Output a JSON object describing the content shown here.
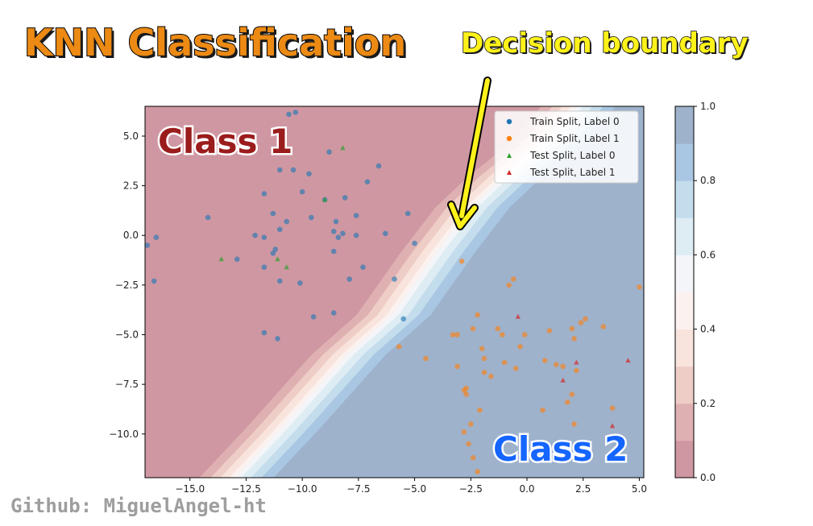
{
  "header": {
    "title": "KNN Classification",
    "callout": "Decision boundary",
    "credit": "Github: MiguelAngel-ht"
  },
  "annotations": {
    "class1": "Class 1",
    "class2": "Class 2"
  },
  "colors": {
    "title": "#ec8a14",
    "callout": "#fff21a",
    "class1_text": "#9b1c1c",
    "class2_text": "#1565ff",
    "region_class1": "#d29aa5",
    "region_class2": "#9fb4cd",
    "train0": "#1f77b4",
    "train1": "#ff7f0e",
    "test0": "#2ca02c",
    "test1": "#d62728"
  },
  "chart_data": {
    "type": "scatter",
    "xlim": [
      -17,
      5.2
    ],
    "ylim": [
      -12.2,
      6.5
    ],
    "xticks": [
      -15.0,
      -12.5,
      -10.0,
      -7.5,
      -5.0,
      -2.5,
      0.0,
      2.5,
      5.0
    ],
    "xtick_labels": [
      "−15.0",
      "−12.5",
      "−10.0",
      "−7.5",
      "−5.0",
      "−2.5",
      "0.0",
      "2.5",
      "5.0"
    ],
    "yticks": [
      5.0,
      2.5,
      0.0,
      -2.5,
      -5.0,
      -7.5,
      -10.0
    ],
    "ytick_labels": [
      "5.0",
      "2.5",
      "0.0",
      "−2.5",
      "−5.0",
      "−7.5",
      "−10.0"
    ],
    "legend_position": "top-right",
    "grid": false,
    "decision_boundary": {
      "levels": [
        0.0,
        0.1,
        0.2,
        0.3,
        0.4,
        0.5,
        0.6,
        0.7,
        0.8,
        0.9,
        1.0
      ],
      "level_colors": [
        "#cf97a2",
        "#dfb0b2",
        "#eecdc6",
        "#f8e4dc",
        "#fbf1ee",
        "#f3f5f8",
        "#deecf3",
        "#c4dded",
        "#a9c6e2",
        "#9eb2cc"
      ],
      "center_line": [
        [
          -13.0,
          -12.2
        ],
        [
          -11.0,
          -9.8
        ],
        [
          -8.0,
          -6.0
        ],
        [
          -6.0,
          -4.0
        ],
        [
          -5.0,
          -2.4
        ],
        [
          -4.0,
          -0.8
        ],
        [
          -2.5,
          1.4
        ],
        [
          -1.0,
          3.0
        ],
        [
          1.0,
          4.8
        ],
        [
          2.2,
          6.5
        ]
      ]
    },
    "colorbar": {
      "range": [
        0.0,
        1.0
      ],
      "ticks": [
        0.0,
        0.2,
        0.4,
        0.6,
        0.8,
        1.0
      ],
      "tick_labels": [
        "0.0",
        "0.2",
        "0.4",
        "0.6",
        "0.8",
        "1.0"
      ]
    },
    "series": [
      {
        "name": "Train Split, Label 0",
        "marker": "circle",
        "color": "#1f77b4",
        "points": [
          [
            -16.9,
            -0.5
          ],
          [
            -16.5,
            -0.1
          ],
          [
            -16.6,
            -2.3
          ],
          [
            -14.2,
            0.9
          ],
          [
            -12.9,
            -1.2
          ],
          [
            -12.1,
            0.0
          ],
          [
            -11.7,
            2.1
          ],
          [
            -11.7,
            -0.1
          ],
          [
            -11.7,
            -1.6
          ],
          [
            -11.3,
            1.1
          ],
          [
            -11.3,
            -0.9
          ],
          [
            -11.2,
            -0.7
          ],
          [
            -11.0,
            3.3
          ],
          [
            -11.0,
            0.3
          ],
          [
            -10.7,
            0.7
          ],
          [
            -10.4,
            3.3
          ],
          [
            -10.1,
            -2.4
          ],
          [
            -10.0,
            2.2
          ],
          [
            -9.7,
            3.1
          ],
          [
            -9.6,
            0.9
          ],
          [
            -9.5,
            -4.1
          ],
          [
            -9.0,
            1.8
          ],
          [
            -8.8,
            4.2
          ],
          [
            -8.6,
            0.2
          ],
          [
            -8.5,
            0.7
          ],
          [
            -8.4,
            -0.1
          ],
          [
            -8.2,
            0.1
          ],
          [
            -8.1,
            1.9
          ],
          [
            -7.9,
            -2.2
          ],
          [
            -7.6,
            1.0
          ],
          [
            -7.6,
            0.0
          ],
          [
            -7.3,
            -1.6
          ],
          [
            -7.1,
            2.7
          ],
          [
            -6.6,
            3.5
          ],
          [
            -6.3,
            0.1
          ],
          [
            -5.9,
            -2.2
          ],
          [
            -5.3,
            1.1
          ],
          [
            -5.0,
            -0.4
          ],
          [
            -10.6,
            6.1
          ],
          [
            -10.3,
            6.2
          ],
          [
            -8.6,
            -0.8
          ],
          [
            -8.6,
            -3.9
          ],
          [
            -11.1,
            -5.2
          ],
          [
            -11.7,
            -4.9
          ],
          [
            -11.0,
            -2.3
          ],
          [
            -5.5,
            -4.2
          ]
        ]
      },
      {
        "name": "Train Split, Label 1",
        "marker": "circle",
        "color": "#ff7f0e",
        "points": [
          [
            -5.7,
            -5.6
          ],
          [
            -4.5,
            -6.2
          ],
          [
            -3.3,
            -5.0
          ],
          [
            -3.1,
            -5.0
          ],
          [
            -3.1,
            -6.6
          ],
          [
            -2.9,
            -1.3
          ],
          [
            -2.8,
            -7.8
          ],
          [
            -2.7,
            -8.0
          ],
          [
            -2.7,
            -7.7
          ],
          [
            -2.5,
            -9.5
          ],
          [
            -2.4,
            -4.7
          ],
          [
            -2.2,
            -4.0
          ],
          [
            -2.0,
            -5.7
          ],
          [
            -1.9,
            -6.2
          ],
          [
            -1.6,
            -7.1
          ],
          [
            -1.3,
            -4.7
          ],
          [
            -1.1,
            -5.0
          ],
          [
            -1.0,
            -6.4
          ],
          [
            -0.8,
            -2.5
          ],
          [
            -0.6,
            -2.2
          ],
          [
            -0.5,
            -6.7
          ],
          [
            -0.3,
            -5.6
          ],
          [
            -0.1,
            -5.0
          ],
          [
            0.8,
            -6.3
          ],
          [
            1.0,
            -4.8
          ],
          [
            1.3,
            -6.5
          ],
          [
            1.6,
            -6.6
          ],
          [
            1.8,
            -8.4
          ],
          [
            2.0,
            -4.7
          ],
          [
            2.1,
            -5.2
          ],
          [
            2.2,
            -6.8
          ],
          [
            2.4,
            -4.4
          ],
          [
            2.6,
            -4.2
          ],
          [
            3.4,
            -4.6
          ],
          [
            3.8,
            -8.7
          ],
          [
            5.0,
            -2.6
          ],
          [
            -2.8,
            -9.9
          ],
          [
            -2.6,
            -10.5
          ],
          [
            -2.4,
            -11.2
          ],
          [
            -2.2,
            -11.9
          ],
          [
            -2.1,
            -8.8
          ],
          [
            -1.9,
            -6.9
          ],
          [
            0.7,
            -8.8
          ],
          [
            2.0,
            -8.0
          ],
          [
            2.1,
            -9.5
          ]
        ]
      },
      {
        "name": "Test Split, Label 0",
        "marker": "triangle",
        "color": "#2ca02c",
        "points": [
          [
            -13.6,
            -1.2
          ],
          [
            -11.1,
            -1.2
          ],
          [
            -10.7,
            -1.6
          ],
          [
            -9.0,
            1.8
          ],
          [
            -8.2,
            4.4
          ]
        ]
      },
      {
        "name": "Test Split, Label 1",
        "marker": "triangle",
        "color": "#d62728",
        "points": [
          [
            -0.4,
            -4.1
          ],
          [
            1.6,
            -7.3
          ],
          [
            2.2,
            -6.4
          ],
          [
            3.8,
            -9.6
          ],
          [
            4.5,
            -6.3
          ]
        ]
      }
    ]
  }
}
